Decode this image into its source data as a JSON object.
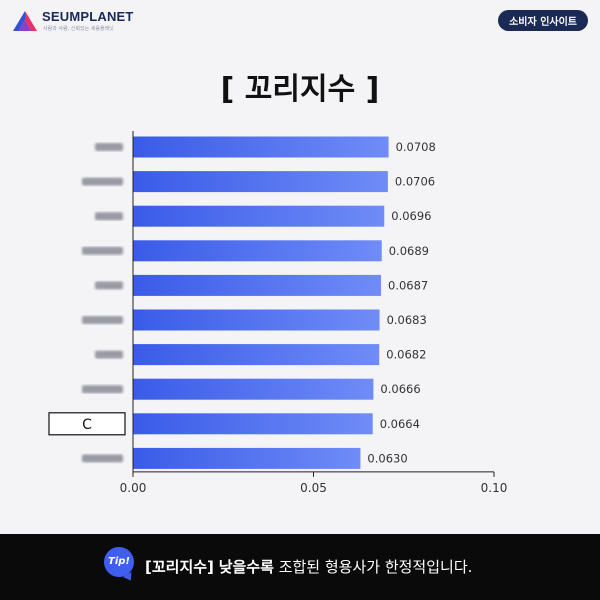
{
  "header": {
    "brand": "SEUMPLANET",
    "tagline": "사람과 사람, 신뢰있는 세움플래닛",
    "badge": "소비자 인사이트"
  },
  "title": "[ 꼬리지수 ]",
  "footer": {
    "tip_label": "Tip!",
    "term": "[꼬리지수]",
    "emphasis": "낮을수록",
    "rest": "조합된 형용사가 한정적입니다."
  },
  "colors": {
    "bar_start": "#3a5be8",
    "bar_end": "#6f8cf7",
    "brand_navy": "#1b2a55",
    "tip_blue": "#3f5ef0"
  },
  "chart_data": {
    "type": "bar",
    "orientation": "horizontal",
    "categories": [
      "",
      "",
      "",
      "",
      "",
      "",
      "",
      "",
      "C",
      ""
    ],
    "category_blurred": [
      true,
      true,
      true,
      true,
      true,
      true,
      true,
      true,
      false,
      true
    ],
    "highlighted_category": "C",
    "values": [
      0.0708,
      0.0706,
      0.0696,
      0.0689,
      0.0687,
      0.0683,
      0.0682,
      0.0666,
      0.0664,
      0.063
    ],
    "data_labels": [
      "0.0708",
      "0.0706",
      "0.0696",
      "0.0689",
      "0.0687",
      "0.0683",
      "0.0682",
      "0.0666",
      "0.0664",
      "0.0630"
    ],
    "xlim": [
      0,
      0.1
    ],
    "xticks": [
      "0.00",
      "0.05",
      "0.10"
    ],
    "grid": false,
    "legend": "none"
  }
}
